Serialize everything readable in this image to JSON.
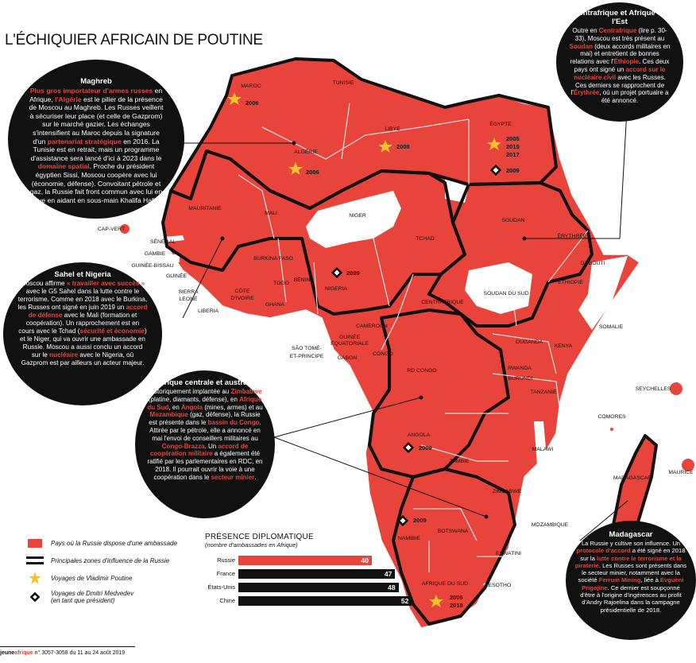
{
  "title": "L'ÉCHIQUIER AFRICAIN DE POUTINE",
  "colors": {
    "russia_embassy": "#e8443b",
    "bubble_bg": "#111111",
    "star": "#f5c12e",
    "nonembassy": "#ffffff"
  },
  "bubbles": {
    "maghreb": {
      "heading": "Maghreb",
      "p1_red": "Plus gros importateur d'armes russes",
      "p1_a": " en Afrique, ",
      "p1_red2": "l'Algérie",
      "p1_b": " est le pilier de la présence de Moscou au Maghreb. Les Russes veillent à sécuriser leur place (et celle de Gazprom) sur le marché gazier. Les échanges s'intensifient au Maroc depuis la signature d'un ",
      "p1_red3": "partenariat stratégique",
      "p1_c": " en 2016. La Tunisie est en retrait, mais un programme d'assistance sera lancé d'ici à 2023 dans le ",
      "p1_red4": "domaine spatial",
      "p1_d": ". Proche du président égyptien Sissi, Moscou coopère avec lui (économie, défense). Convoitant pétrole et gaz, la Russie fait front commun avec lui en Libye en aidant en sous-main Khalifa Haftar."
    },
    "est": {
      "heading": "Centrafrique et Afrique de l'Est",
      "a": "Outre en ",
      "r1": "Centrafrique",
      "b": " (lire p. 30-33), Moscou est très présent au ",
      "r2": "Soudan",
      "c": " (deux accords militaires en mai) et entretient de bonnes relations avec l'",
      "r3": "Éthiopie",
      "d": ". Ces deux pays ont signé un ",
      "r4": "accord sur le nucléaire civil",
      "e": " avec les Russes. Ces derniers se rapprochent de l'",
      "r5": "Érythrée",
      "f": ", où un projet portuaire a été annoncé."
    },
    "sahel": {
      "heading": "Sahel et Nigeria",
      "a": "Moscou affirme ",
      "r1": "« travailler avec succès »",
      "b": " avec le G5 Sahel dans la lutte contre le terrorisme. Comme en 2018 avec le Burkina, les Russes ont signé en juin 2019 un ",
      "r2": "accord de défense",
      "c": " avec le Mali (formation et coopération). Un rapprochement est en cours avec le Tchad (",
      "r3": "sécurité et économie",
      "d": ") et le Niger, qui va ouvrir une ambassade en Russie. Moscou a aussi conclu un accord sur le ",
      "r4": "nucléaire",
      "e": " avec le Nigeria, où Gazprom est par ailleurs un acteur majeur."
    },
    "centrale": {
      "heading": "Afrique centrale et australe",
      "a": "Historiquement implantée au ",
      "r1": "Zimbabwe",
      "b": " (platine, diamants, défense), en ",
      "r2": "Afrique du Sud",
      "c": ", en ",
      "r3": "Angola",
      "d": " (mines, armes) et au ",
      "r4": "Mozambique",
      "e": " (gaz, défense), la Russie est présente dans le ",
      "r5": "bassin du Congo",
      "f": ". Attirée par le pétrole, elle a annoncé en mai l'envoi de conseillers militaires au ",
      "r6": "Congo-Brazza",
      "g": ". Un ",
      "r7": "accord de coopération militaire",
      "h": " a également été ratifié par les parlementaires en RDC, en 2018. Il pourrait ouvrir la voie à une coopération dans le ",
      "r8": "secteur minier",
      "i": "."
    },
    "madagascar": {
      "heading": "Madagascar",
      "a": "La Russie y cultive son influence. Un ",
      "r1": "protocole d'accord",
      "b": " a été signé en 2018 sur la ",
      "r2": "lutte contre le terrorisme et la piraterie",
      "c": ". Les Russes sont présents dans le secteur minier, notamment avec la société ",
      "r3": "Ferrum Mining",
      "d": ", liée à ",
      "r4": "Evgueni Prigojine",
      "e": ". Ce dernier est soupçonné d'être à l'origine d'ingérences au profit d'Andry Rajoelina dans la campagne présidentielle de 2018."
    }
  },
  "countries": {
    "maroc": "MAROC",
    "tunisie": "TUNISIE",
    "algerie": "ALGÉRIE",
    "libye": "LIBYE",
    "egypte": "ÉGYPTE",
    "mauritanie": "MAURITANIE",
    "mali": "MALI",
    "niger": "NIGER",
    "tchad": "TCHAD",
    "soudan": "SOUDAN",
    "erythree": "ÉRYTHRÉE",
    "djibouti": "DJIBOUTI",
    "ethiopie": "ÉTHIOPIE",
    "somalie": "SOMALIE",
    "soudan_sud": "SOUDAN DU SUD",
    "centrafrique": "CENTRAFRIQUE",
    "cap_vert": "CAP-VERT",
    "senegal": "SÉNÉGAL",
    "gambie": "GAMBIE",
    "guinee_bissau": "GUINÉE-BISSAU",
    "guinee": "GUINÉE",
    "sierra_leone_1": "SIERRA",
    "sierra_leone_2": "LEONE",
    "liberia": "LIBERIA",
    "cote_ivoire_1": "CÔTE",
    "cote_ivoire_2": "D'IVOIRE",
    "burkina": "BURKINA FASO",
    "ghana": "GHANA",
    "togo": "TOGO",
    "benin": "BÉNIN",
    "nigeria": "NIGERIA",
    "cameroun": "CAMEROUN",
    "guinee_eq_1": "GUINÉE",
    "guinee_eq_2": "ÉQUATORIALE",
    "stp_1": "SÃO TOMÉ-",
    "stp_2": "ET-PRINCIPE",
    "gabon": "GABON",
    "congo": "CONGO",
    "rdc": "RD CONGO",
    "ouganda": "OUGANDA",
    "kenya": "KENYA",
    "rwanda": "RWANDA",
    "burundi": "BURUNDI",
    "tanzanie": "TANZANIE",
    "seychelles": "SEYCHELLES",
    "comores": "COMORES",
    "malawi": "MALAWI",
    "angola": "ANGOLA",
    "zambie": "ZAMBIE",
    "zimbabwe": "ZIMBABWE",
    "mozambique": "MOZAMBIQUE",
    "madagascar": "MADAGASCAR",
    "maurice": "MAURICE",
    "namibie": "NAMIBIE",
    "botswana": "BOTSWANA",
    "eswatini": "ESWATINI",
    "lesotho": "LESOTHO",
    "afrique_sud_1": "AFRIQUE DU SUD"
  },
  "visits": {
    "maroc": "2006",
    "algerie": "2006",
    "libye": "2008",
    "egypte_1": "2005",
    "egypte_2": "2015",
    "egypte_3": "2017",
    "egypte_med": "2009",
    "nigeria": "2009",
    "angola": "2009",
    "namibie": "2009",
    "afrique_sud_1": "2006",
    "afrique_sud_2": "2018"
  },
  "legend": {
    "embassy": "Pays où la Russie dispose d'une ambassade",
    "influence": "Principales zones d'influence de la Russie",
    "poutine": "Voyages de Vladimir Poutine",
    "medvedev_1": "Voyages de Dmitri Medvedev",
    "medvedev_2": "(en tant que président)"
  },
  "presence": {
    "title": "PRÉSENCE DIPLOMATIQUE",
    "subtitle": "(nombre d'ambassades en Afrique)",
    "rows": [
      {
        "country": "Russie",
        "value": 40,
        "color": "#e8443b"
      },
      {
        "country": "France",
        "value": 47,
        "color": "#111111"
      },
      {
        "country": "États-Unis",
        "value": 48,
        "color": "#111111"
      },
      {
        "country": "Chine",
        "value": 52,
        "color": "#111111"
      }
    ]
  },
  "footer": {
    "brand_a": "jeune",
    "brand_b": "afrique",
    "issue": " n° 3057-3058 du 11 au 24 août 2019"
  }
}
